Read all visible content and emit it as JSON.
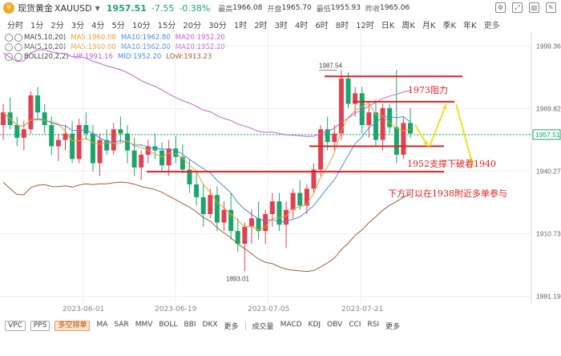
{
  "header": {
    "logo_char": "¥",
    "name": "现货黄金",
    "symbol": "XAUUSD",
    "price": "1957.51",
    "change": "-7.55",
    "change_pct": "-0.38%",
    "high_label": "最高",
    "high": "1966.08",
    "open_label": "开盘",
    "open": "1965.70",
    "low_label": "最低",
    "low": "1955.93",
    "prev_label": "昨收",
    "prev": "1965.06"
  },
  "tabs": [
    "分时",
    "1分",
    "2分",
    "3分",
    "4分",
    "5分",
    "10分",
    "15分",
    "20分",
    "30分",
    "1时",
    "2时",
    "3时",
    "4时",
    "6时",
    "8时",
    "12时",
    "日K",
    "周K",
    "月K",
    "季K",
    "年K",
    "更多"
  ],
  "indicators": [
    {
      "name": "MA(5,10,20)",
      "items": [
        {
          "text": "MA5:1960.08",
          "color": "#e8a030"
        },
        {
          "text": "MA10:1962.80",
          "color": "#4a8adf"
        },
        {
          "text": "MA20:1952.20",
          "color": "#c060d0"
        }
      ]
    },
    {
      "name": "MA(5,10,20)",
      "items": [
        {
          "text": "MA5:1960.08",
          "color": "#e8a030"
        },
        {
          "text": "MA10:1962.80",
          "color": "#4a8adf"
        },
        {
          "text": "MA20:1952.20",
          "color": "#c060d0"
        }
      ]
    },
    {
      "name": "BOLL(20,2,2)",
      "items": [
        {
          "text": "UP:1991.16",
          "color": "#c060d0"
        },
        {
          "text": "MID:1952.20",
          "color": "#4a8adf"
        },
        {
          "text": "LOW:1913.23",
          "color": "#a06030"
        }
      ]
    }
  ],
  "y_axis": [
    "1999.36",
    "1969.82",
    "1957.51",
    "1940.27",
    "1910.73",
    "1881.19"
  ],
  "x_axis": [
    "2023-06-01",
    "2023-06-19",
    "2023-07-05",
    "2023-07-21"
  ],
  "labels": {
    "high": "1987.54",
    "low": "1893.01"
  },
  "annotations": {
    "resistance": "1973阻力",
    "support": "1952支撑下破看1940",
    "note": "下方可以在1938附近多单参与"
  },
  "bottom_buttons": [
    "VPC",
    "PPS",
    "多空排单"
  ],
  "bottom_main": [
    "MA",
    "SAR",
    "MMV",
    "BOLL",
    "BBI",
    "DKX",
    "更多"
  ],
  "bottom_sub": [
    "成交量",
    "MACD",
    "KDJ",
    "OBV",
    "CCI",
    "RSI",
    "更多"
  ],
  "colors": {
    "up": "#e04050",
    "down": "#1aa66b",
    "annotation": "#e02020",
    "arrow": "#f0e020"
  }
}
